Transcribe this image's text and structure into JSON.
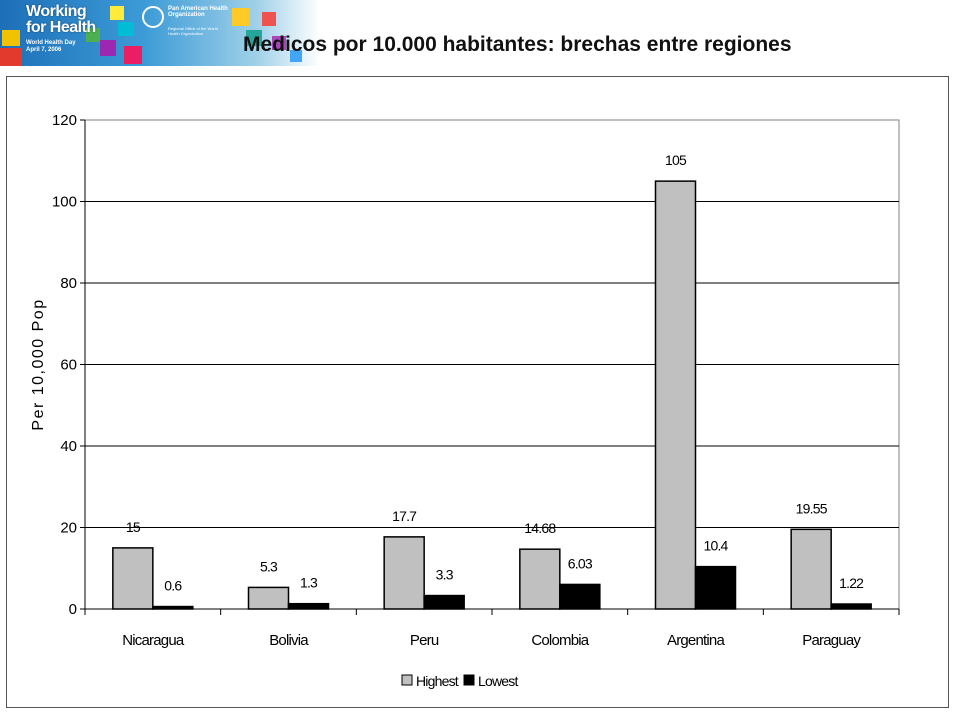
{
  "header": {
    "brand_line1": "Working",
    "brand_line2": "for Health",
    "brand_event": "World Health Day",
    "brand_date": "April 7, 2006",
    "org_name": "Pan American Health Organization",
    "org_sub": "Regional Office of the World Health Organization"
  },
  "colors": {
    "highest": "#c0c0c0",
    "lowest": "#000000"
  },
  "chart_data": {
    "type": "bar",
    "title": "Medicos por 10.000 habitantes: brechas entre regiones",
    "xlabel": "",
    "ylabel": "Per 10,000 Pop",
    "ylim": [
      0,
      120
    ],
    "yticks": [
      0,
      20,
      40,
      60,
      80,
      100,
      120
    ],
    "grid": true,
    "legend_position": "bottom",
    "categories": [
      "Nicaragua",
      "Bolivia",
      "Peru",
      "Colombia",
      "Argentina",
      "Paraguay"
    ],
    "series": [
      {
        "name": "Highest",
        "values": [
          15,
          5.3,
          17.7,
          14.68,
          105,
          19.55
        ],
        "labels": [
          "15",
          "5.3",
          "17.7",
          "14.68",
          "105",
          "19.55"
        ]
      },
      {
        "name": "Lowest",
        "values": [
          0.6,
          1.3,
          3.3,
          6.03,
          10.4,
          1.22
        ],
        "labels": [
          "0.6",
          "1.3",
          "3.3",
          "6.03",
          "10.4",
          "1.22"
        ]
      }
    ]
  }
}
